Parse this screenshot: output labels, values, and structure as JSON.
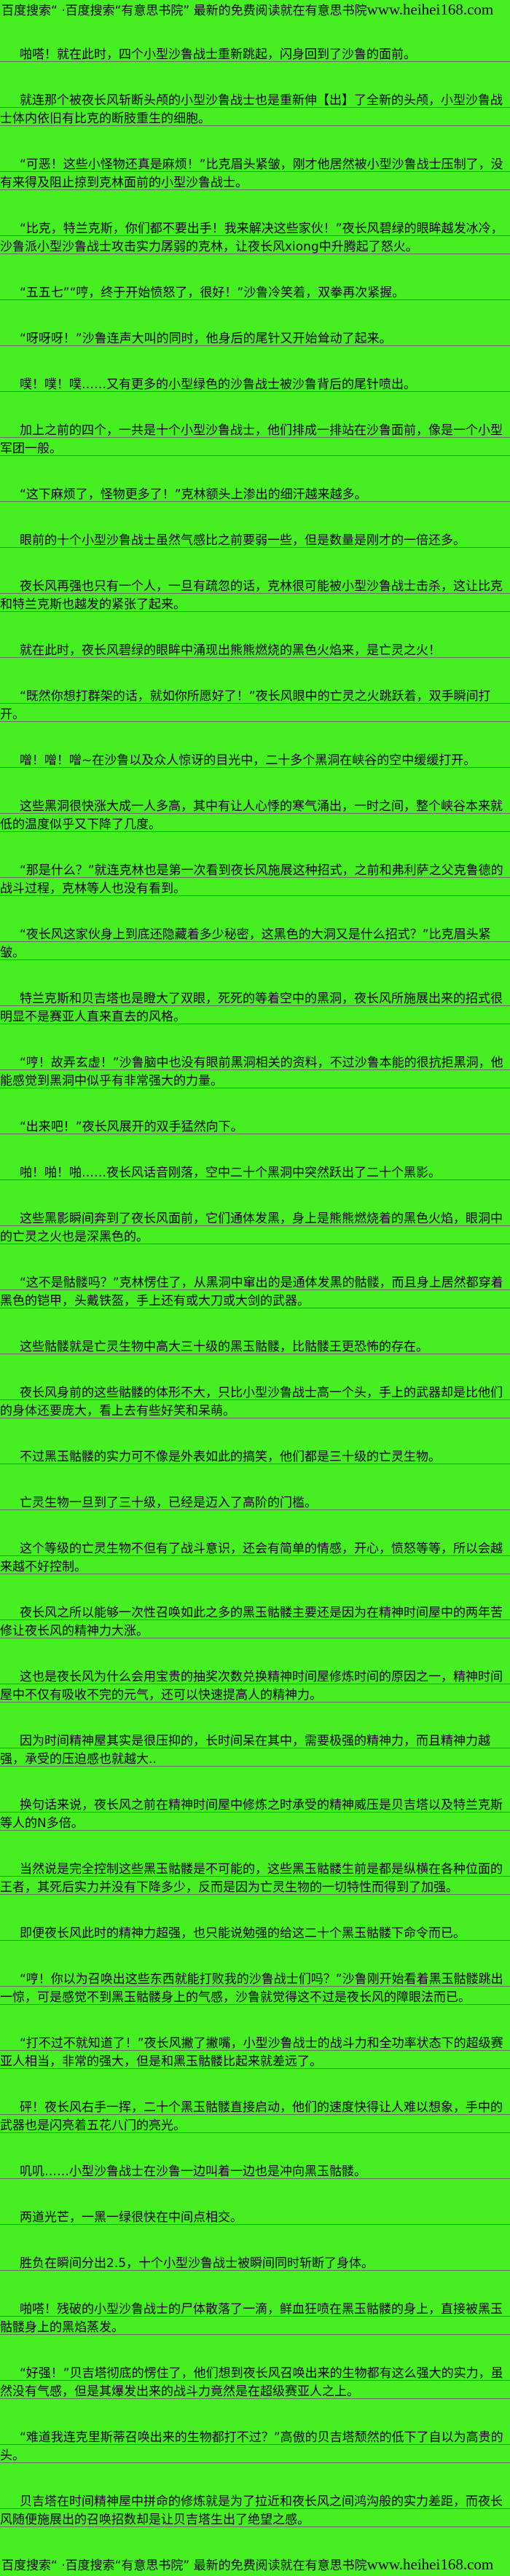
{
  "page": {
    "background_color": "#45ef21",
    "text_color": "#000000",
    "rule_line_color": "#6a6a6a"
  },
  "header": {
    "promo_text": "百度搜索“ ·百度搜索“有意思书院” 最新的免费阅读就在有意思书院",
    "site_url": "www.heihei168.com"
  },
  "footer": {
    "promo_text": "百度搜索“ ·百度搜索“有意思书院” 最新的免费阅读就在有意思书院",
    "site_url": "www.heihei168.com"
  },
  "novel": {
    "paragraphs": [
      "啪嗒！就在此时，四个小型沙鲁战士重新跳起，闪身回到了沙鲁的面前。",
      "就连那个被夜长风斩断头颅的小型沙鲁战士也是重新伸【出】了全新的头颅，小型沙鲁战士体内依旧有比克的断肢重生的细胞。",
      "“可恶！这些小怪物还真是麻烦！”比克眉头紧皱，刚才他居然被小型沙鲁战士压制了，没有来得及阻止掠到克林面前的小型沙鲁战士。",
      "“比克，特兰克斯，你们都不要出手！我来解决这些家伙！”夜长风碧绿的眼眸越发冰冷，沙鲁派小型沙鲁战士攻击实力孱弱的克林，让夜长风xiong中升腾起了怒火。",
      "“五五七”“哼，终于开始愤怒了，很好！”沙鲁冷笑着，双拳再次紧握。",
      "“呀呀呀！”沙鲁连声大叫的同时，他身后的尾针又开始耸动了起来。",
      "噗！噗！噗……又有更多的小型绿色的沙鲁战士被沙鲁背后的尾针喷出。",
      "加上之前的四个，一共是十个小型沙鲁战士，他们排成一排站在沙鲁面前，像是一个小型军团一般。",
      "“这下麻烦了，怪物更多了！”克林额头上渗出的细汗越来越多。",
      "眼前的十个小型沙鲁战士虽然气感比之前要弱一些，但是数量是刚才的一倍还多。",
      "夜长风再强也只有一个人，一旦有疏忽的话，克林很可能被小型沙鲁战士击杀，这让比克和特兰克斯也越发的紧张了起来。",
      "就在此时，夜长风碧绿的眼眸中涌现出熊熊燃烧的黑色火焰来，是亡灵之火！",
      "“既然你想打群架的话，就如你所愿好了！”夜长风眼中的亡灵之火跳跃着，双手瞬间打开。",
      "噌！噌！噌~在沙鲁以及众人惊讶的目光中，二十多个黑洞在峡谷的空中缓缓打开。",
      "这些黑洞很快涨大成一人多高，其中有让人心悸的寒气涌出，一时之间，整个峡谷本来就低的温度似乎又下降了几度。",
      "“那是什么？”就连克林也是第一次看到夜长风施展这种招式，之前和弗利萨之父克鲁德的战斗过程，克林等人也没有看到。",
      "“夜长风这家伙身上到底还隐藏着多少秘密，这黑色的大洞又是什么招式？”比克眉头紧皱。",
      "特兰克斯和贝吉塔也是瞪大了双眼，死死的等着空中的黑洞，夜长风所施展出来的招式很明显不是赛亚人直来直去的风格。",
      "“哼！故弄玄虚！”沙鲁脑中也没有眼前黑洞相关的资料，不过沙鲁本能的很抗拒黑洞，他能感觉到黑洞中似乎有非常强大的力量。",
      "“出来吧！”夜长风展开的双手猛然向下。",
      "啪！啪！啪……夜长风话音刚落，空中二十个黑洞中突然跃出了二十个黑影。",
      "这些黑影瞬间奔到了夜长风面前，它们通体发黑，身上是熊熊燃烧着的黑色火焰，眼洞中的亡灵之火也是深黑色的。",
      "“这不是骷髅吗？”克林愣住了，从黑洞中窜出的是通体发黑的骷髅，而且身上居然都穿着黑色的铠甲，头戴铁盔，手上还有或大刀或大剑的武器。",
      "这些骷髅就是亡灵生物中高大三十级的黑玉骷髅，比骷髅王更恐怖的存在。",
      "夜长风身前的这些骷髅的体形不大，只比小型沙鲁战士高一个头，手上的武器却是比他们的身体还要庞大，看上去有些好笑和呆萌。",
      "不过黑玉骷髅的实力可不像是外表如此的搞笑，他们都是三十级的亡灵生物。",
      "亡灵生物一旦到了三十级，已经是迈入了高阶的门槛。",
      "这个等级的亡灵生物不但有了战斗意识，还会有简单的情感，开心，愤怒等等，所以会越来越不好控制。",
      "夜长风之所以能够一次性召唤如此之多的黑玉骷髅主要还是因为在精神时间屋中的两年苦修让夜长风的精神力大涨。",
      "这也是夜长风为什么会用宝贵的抽奖次数兑换精神时间屋修炼时间的原因之一，精神时间屋中不仅有吸收不完的元气，还可以快速提高人的精神力。",
      "因为时间精神屋其实是很压抑的，长时间呆在其中，需要极强的精神力，而且精神力越强，承受的压迫感也就越大..",
      "换句话来说，夜长风之前在精神时间屋中修炼之时承受的精神威压是贝吉塔以及特兰克斯等人的N多倍。",
      "当然说是完全控制这些黑玉骷髅是不可能的，这些黑玉骷髅生前是都是纵横在各种位面的王者，其死后实力并没有下降多少，反而是因为亡灵生物的一切特性而得到了加强。",
      "即便夜长风此时的精神力超强，也只能说勉强的给这二十个黑玉骷髅下命令而已。",
      "“哼！你以为召唤出这些东西就能打败我的沙鲁战士们吗？”沙鲁刚开始看着黑玉骷髅跳出一惊，可是感觉不到黑玉骷髅身上的气感，沙鲁就觉得这不过是夜长风的障眼法而已。",
      "“打不过不就知道了！”夜长风撇了撇嘴，小型沙鲁战士的战斗力和全功率状态下的超级赛亚人相当，非常的强大，但是和黑玉骷髅比起来就差远了。",
      "砰！夜长风右手一挥，二十个黑玉骷髅直接启动，他们的速度快得让人难以想象，手中的武器也是闪亮着五花八门的亮光。",
      "叽叽……小型沙鲁战士在沙鲁一边叫着一边也是冲向黑玉骷髅。",
      "两道光芒，一黑一绿很快在中间点相交。",
      "胜负在瞬间分出2.5，十个小型沙鲁战士被瞬间同时斩断了身体。",
      "啪嗒！残破的小型沙鲁战士的尸体散落了一滴，鲜血狂喷在黑玉骷髅的身上，直接被黑玉骷髅身上的黑焰蒸发。",
      "“好强！”贝吉塔彻底的愣住了，他们想到夜长风召唤出来的生物都有这么强大的实力，虽然没有气感，但是其爆发出来的战斗力竟然是在超级赛亚人之上。",
      "“难道我连克里斯蒂召唤出来的生物都打不过？”高傲的贝吉塔颓然的低下了自以为高贵的头。",
      "贝吉塔在时间精神屋中拼命的修炼就是为了拉近和夜长风之间鸿沟般的实力差距，而夜长风随便施展出的召唤招数却是让贝吉塔生出了绝望之感。"
    ]
  }
}
